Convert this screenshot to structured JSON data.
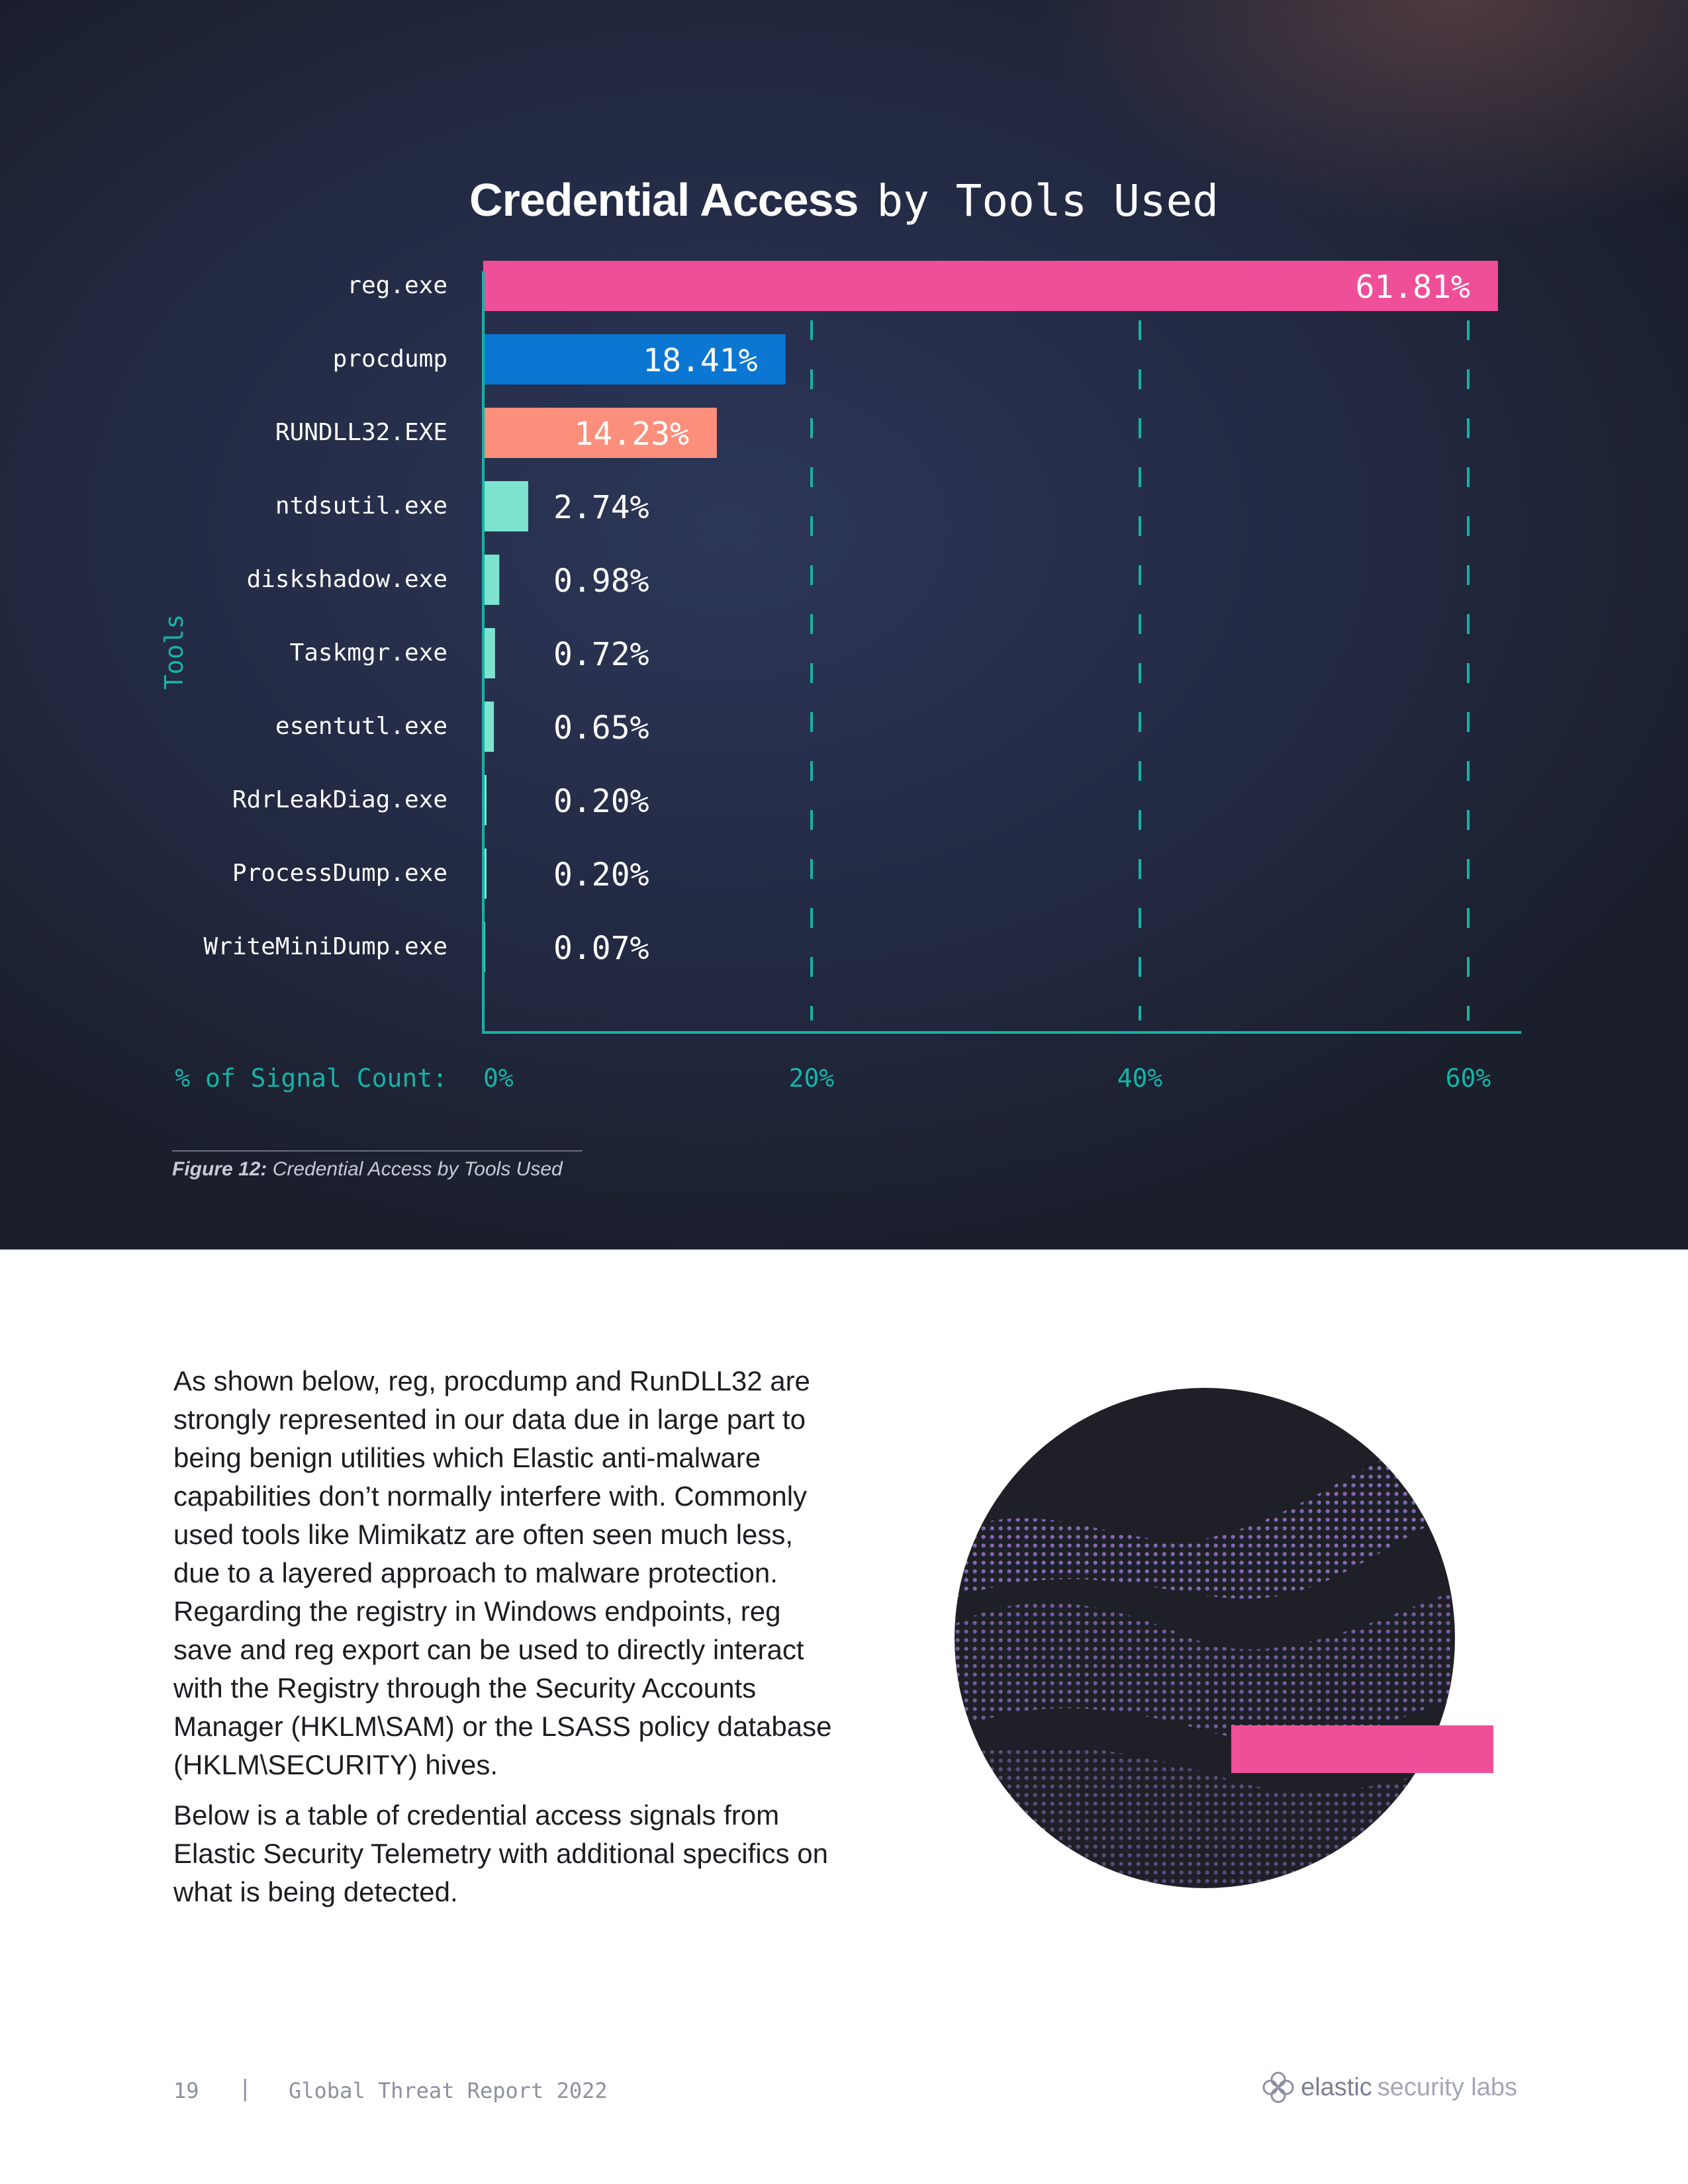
{
  "chart_title": {
    "strong": "Credential Access",
    "rest": "by Tools Used"
  },
  "chart_data": {
    "type": "bar",
    "orientation": "horizontal",
    "title": "Credential Access by Tools Used",
    "ylabel": "Tools",
    "xlabel": "% of Signal Count:",
    "xlim": [
      0,
      63
    ],
    "x_ticks": [
      0,
      20,
      40,
      60
    ],
    "x_tick_labels": [
      "0%",
      "20%",
      "40%",
      "60%"
    ],
    "grid": "vertical dashed",
    "categories": [
      "reg.exe",
      "procdump",
      "RUNDLL32.EXE",
      "ntdsutil.exe",
      "diskshadow.exe",
      "Taskmgr.exe",
      "esentutl.exe",
      "RdrLeakDiag.exe",
      "ProcessDump.exe",
      "WriteMiniDump.exe"
    ],
    "values": [
      61.81,
      18.41,
      14.23,
      2.74,
      0.98,
      0.72,
      0.65,
      0.2,
      0.2,
      0.07
    ],
    "value_labels": [
      "61.81%",
      "18.41%",
      "14.23%",
      "2.74%",
      "0.98%",
      "0.72%",
      "0.65%",
      "0.20%",
      "0.20%",
      "0.07%"
    ],
    "colors": [
      "#ef4f98",
      "#0b77d2",
      "#fc8f7c",
      "#7de3cf",
      "#7de3cf",
      "#7de3cf",
      "#7de3cf",
      "#7de3cf",
      "#7de3cf",
      "#7de3cf"
    ],
    "axis_color": "#15b3a6"
  },
  "caption": {
    "label": "Figure 12:",
    "text": "Credential Access by Tools Used"
  },
  "body": {
    "p1": "As shown below, reg, procdump and RunDLL32 are strongly represented in our data due in large part to being benign utilities which Elastic anti-malware capabilities don’t normally interfere with. Commonly used tools like Mimikatz are often seen much less, due to a layered approach to malware protection. Regarding the registry in Windows endpoints, reg save and reg export can be used to directly interact with the Registry through the Security Accounts Manager (HKLM\\SAM) or the LSASS policy database (HKLM\\SECURITY) hives.",
    "p2": "Below is a table of credential access signals from Elastic Security Telemetry with additional specifics on what is being detected."
  },
  "footer": {
    "page_number": "19",
    "separator": "|",
    "report_title": "Global Threat Report 2022",
    "logo_strong": "elastic",
    "logo_light": "security labs"
  },
  "icons": {
    "logo": "elastic-logo-icon"
  }
}
